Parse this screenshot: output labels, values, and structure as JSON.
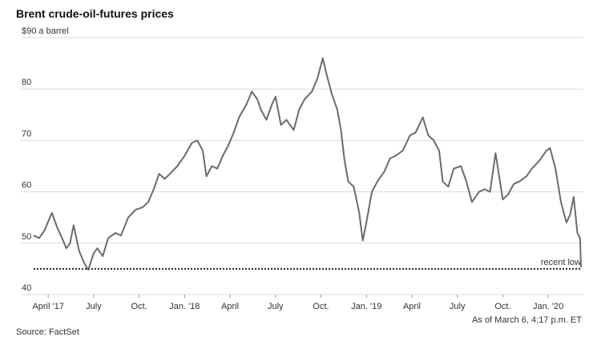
{
  "chart_data": {
    "type": "line",
    "title": "Brent crude-oil-futures prices",
    "source": "Source: FactSet",
    "note": "As of March 6, 4:17 p.m. ET",
    "color": "#6b6b6b",
    "grid": true,
    "reference_line": {
      "value": 45,
      "label": "recent low"
    },
    "xlim": [
      2017.17,
      2020.18
    ],
    "xticks": [
      {
        "value": 2017.25,
        "label": "April '17"
      },
      {
        "value": 2017.5,
        "label": "July"
      },
      {
        "value": 2017.75,
        "label": "Oct."
      },
      {
        "value": 2018.0,
        "label": "Jan. '18"
      },
      {
        "value": 2018.25,
        "label": "April"
      },
      {
        "value": 2018.5,
        "label": "July"
      },
      {
        "value": 2018.75,
        "label": "Oct."
      },
      {
        "value": 2019.0,
        "label": "Jan. '19"
      },
      {
        "value": 2019.25,
        "label": "April"
      },
      {
        "value": 2019.5,
        "label": "July"
      },
      {
        "value": 2019.75,
        "label": "Oct."
      },
      {
        "value": 2020.0,
        "label": "Jan. '20"
      }
    ],
    "ylim": [
      40,
      90
    ],
    "yticks": [
      40,
      50,
      60,
      70,
      80,
      {
        "value": 90,
        "label": "$90 a barrel"
      }
    ],
    "x": [
      2017.17,
      2017.2,
      2017.23,
      2017.27,
      2017.3,
      2017.32,
      2017.35,
      2017.37,
      2017.39,
      2017.42,
      2017.45,
      2017.47,
      2017.5,
      2017.52,
      2017.55,
      2017.58,
      2017.62,
      2017.65,
      2017.69,
      2017.73,
      2017.77,
      2017.8,
      2017.83,
      2017.86,
      2017.89,
      2017.92,
      2017.96,
      2018.0,
      2018.04,
      2018.07,
      2018.1,
      2018.12,
      2018.15,
      2018.18,
      2018.21,
      2018.24,
      2018.27,
      2018.3,
      2018.34,
      2018.37,
      2018.4,
      2018.42,
      2018.45,
      2018.48,
      2018.5,
      2018.53,
      2018.56,
      2018.6,
      2018.63,
      2018.66,
      2018.7,
      2018.73,
      2018.76,
      2018.78,
      2018.81,
      2018.84,
      2018.86,
      2018.88,
      2018.9,
      2018.93,
      2018.96,
      2018.98,
      2019.0,
      2019.03,
      2019.06,
      2019.1,
      2019.13,
      2019.16,
      2019.2,
      2019.24,
      2019.27,
      2019.31,
      2019.34,
      2019.37,
      2019.4,
      2019.42,
      2019.45,
      2019.48,
      2019.52,
      2019.55,
      2019.58,
      2019.62,
      2019.65,
      2019.68,
      2019.71,
      2019.73,
      2019.75,
      2019.78,
      2019.81,
      2019.84,
      2019.88,
      2019.91,
      2019.95,
      2019.99,
      2020.01,
      2020.04,
      2020.07,
      2020.1,
      2020.12,
      2020.14,
      2020.16,
      2020.175,
      2020.18
    ],
    "values": [
      51.5,
      51,
      52.5,
      55.9,
      53,
      51.5,
      49,
      50,
      53.5,
      48.5,
      46,
      44.8,
      48,
      49,
      47.5,
      51,
      52,
      51.5,
      55,
      56.5,
      57,
      58,
      60.5,
      63.5,
      62.5,
      63.5,
      65,
      67,
      69.5,
      70,
      68,
      63,
      65,
      64.5,
      67,
      69,
      71.5,
      74.5,
      77,
      79.5,
      78,
      76,
      74,
      77,
      78.5,
      73,
      74,
      72,
      76,
      78,
      79.5,
      82,
      86,
      83,
      79,
      76,
      72,
      66,
      62,
      61,
      56,
      50.5,
      54,
      60,
      62,
      64,
      66.5,
      67,
      68,
      71,
      71.5,
      74.5,
      71,
      70,
      68,
      62,
      61,
      64.5,
      65,
      62,
      58,
      60,
      60.5,
      60,
      67.5,
      63,
      58.5,
      59.5,
      61.5,
      62,
      63,
      64.5,
      66,
      68,
      68.5,
      64.5,
      58,
      54,
      55.5,
      59,
      52,
      51,
      45.3
    ]
  }
}
